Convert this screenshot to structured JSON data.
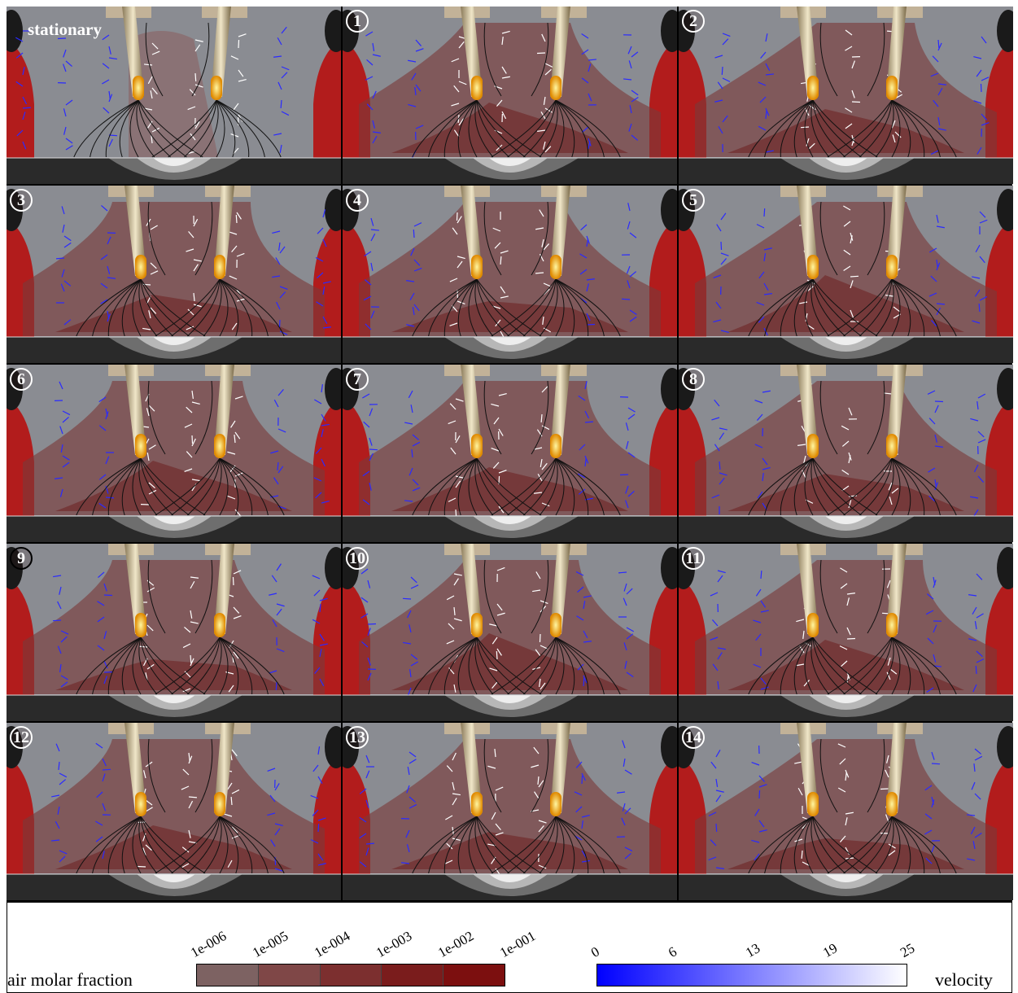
{
  "panels": [
    {
      "label": "stationary",
      "type": "text"
    },
    {
      "label": "1",
      "type": "badge"
    },
    {
      "label": "2",
      "type": "badge"
    },
    {
      "label": "3",
      "type": "badge"
    },
    {
      "label": "4",
      "type": "badge"
    },
    {
      "label": "5",
      "type": "badge"
    },
    {
      "label": "6",
      "type": "badge"
    },
    {
      "label": "7",
      "type": "badge"
    },
    {
      "label": "8",
      "type": "badge"
    },
    {
      "label": "9",
      "type": "badge"
    },
    {
      "label": "10",
      "type": "badge"
    },
    {
      "label": "11",
      "type": "badge"
    },
    {
      "label": "12",
      "type": "badge"
    },
    {
      "label": "13",
      "type": "badge"
    },
    {
      "label": "14",
      "type": "badge"
    }
  ],
  "legend": {
    "air_label": "air molar fraction",
    "air_ticks": [
      "1e-006",
      "1e-005",
      "1e-004",
      "1e-003",
      "1e-002",
      "1e-001"
    ],
    "air_colors": [
      "#7d6262",
      "#7f4747",
      "#7c2f2f",
      "#7a1c1c",
      "#7c0f0f"
    ],
    "velocity_label": "velocity",
    "velocity_ticks": [
      "0",
      "6",
      "13",
      "19",
      "25"
    ],
    "velocity_colors": [
      "#0000ff",
      "#ffffff"
    ]
  }
}
